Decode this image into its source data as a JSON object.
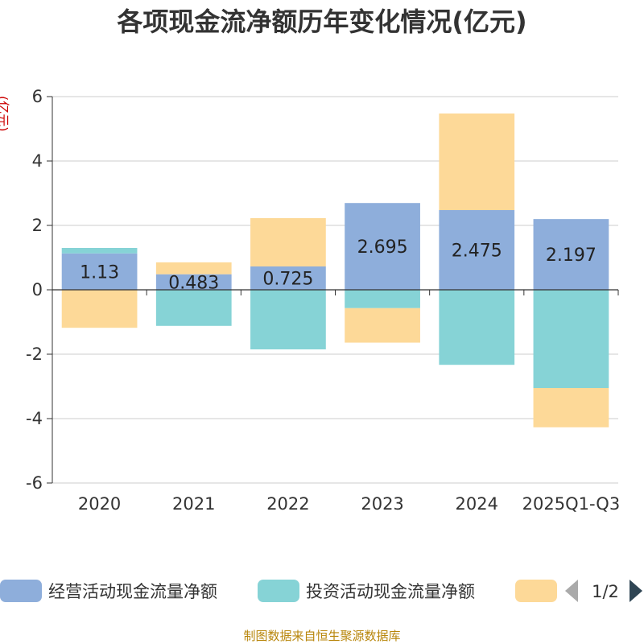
{
  "chart_data": {
    "type": "bar",
    "stacked": true,
    "title": "各项现金流净额历年变化情况(亿元)",
    "ylabel": "(亿元)",
    "xlabel": "",
    "categories": [
      "2020",
      "2021",
      "2022",
      "2023",
      "2024",
      "2025Q1-Q3"
    ],
    "ylim": [
      -6,
      6
    ],
    "yticks": [
      6,
      4,
      2,
      0,
      -2,
      -4,
      -6
    ],
    "grid": true,
    "series": [
      {
        "name": "经营活动现金流量净额",
        "color": "#8eaedb",
        "values": [
          1.13,
          0.483,
          0.725,
          2.695,
          2.475,
          2.197
        ],
        "show_labels": true
      },
      {
        "name": "投资活动现金流量净额",
        "color": "#86d3d6",
        "values": [
          0.17,
          -1.12,
          -1.85,
          -0.57,
          -2.33,
          -3.05
        ],
        "show_labels": false
      },
      {
        "name": "",
        "color": "#fdd998",
        "values": [
          -1.18,
          0.37,
          1.5,
          -1.07,
          3.0,
          -1.22
        ],
        "show_labels": false
      }
    ],
    "legend": {
      "position": "bottom",
      "page_indicator": "1/2"
    },
    "source": "制图数据来自恒生聚源数据库"
  }
}
